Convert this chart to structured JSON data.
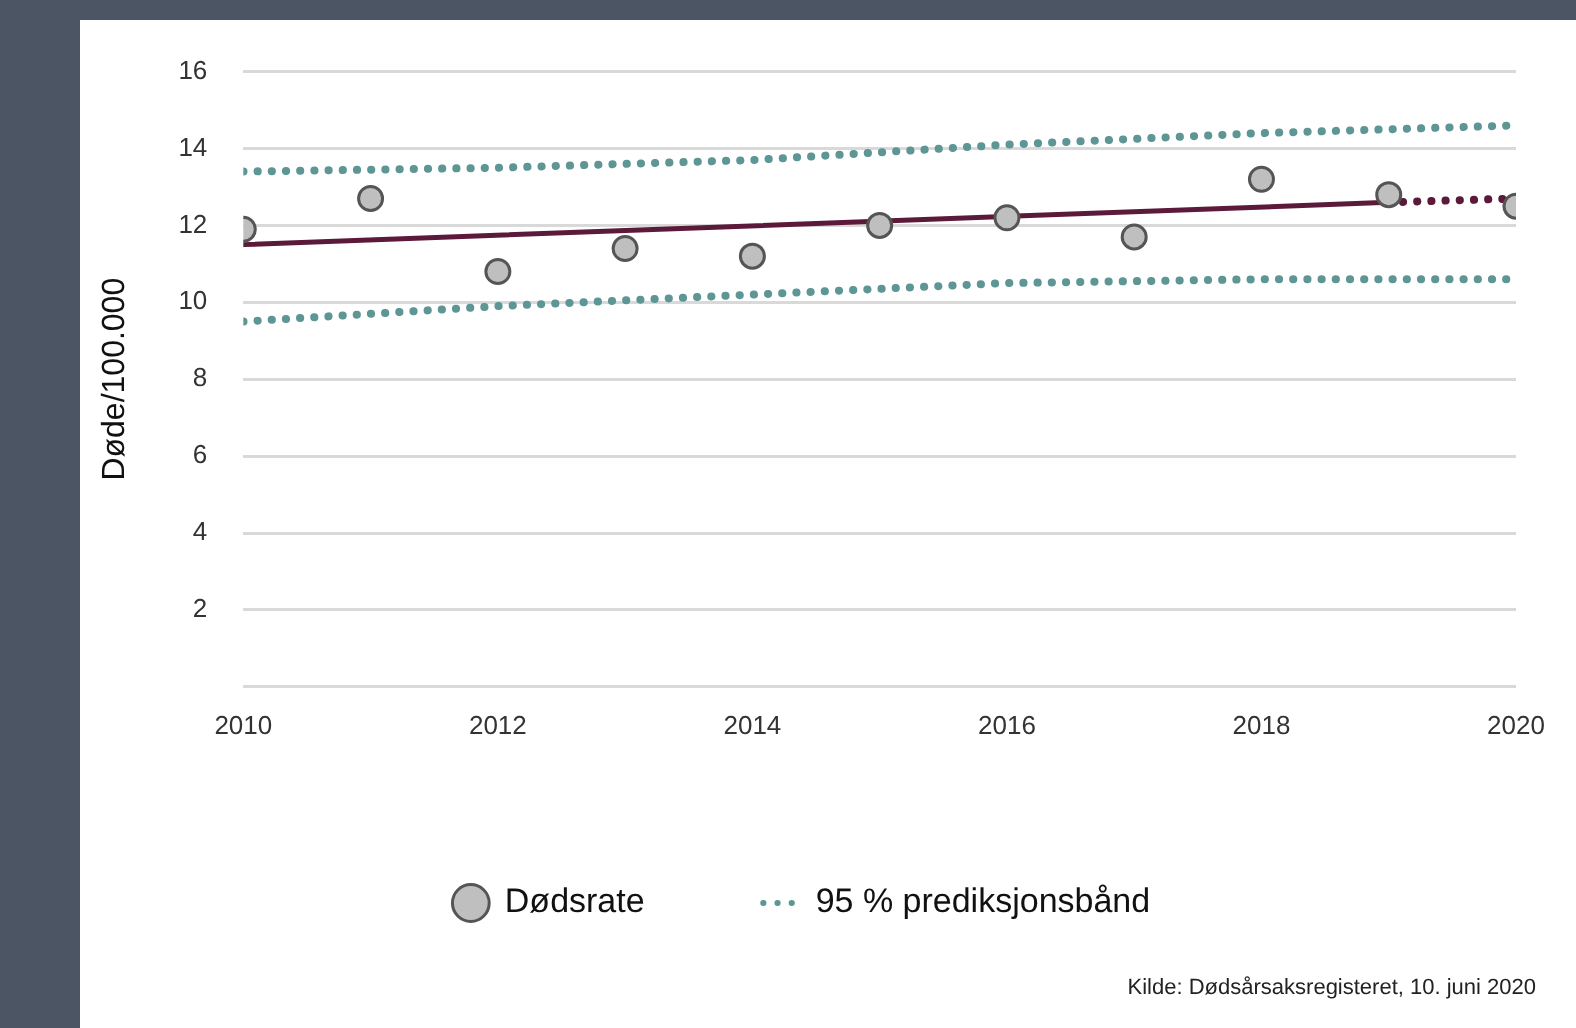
{
  "chart_data": {
    "type": "scatter",
    "ylabel": "Døde/100.000",
    "annotations": [
      "Kilde: Dødsårsaksregisteret, 10. juni 2020"
    ],
    "xlim": [
      2010,
      2020
    ],
    "xticks": [
      2010,
      2012,
      2014,
      2016,
      2018,
      2020
    ],
    "ylim": [
      0,
      16
    ],
    "yticks": [
      {
        "value": 0,
        "label": null
      },
      2,
      4,
      6,
      8,
      10,
      12,
      14,
      16
    ],
    "grid": "y",
    "legend": "bottom",
    "series": [
      {
        "name": "Dødsrate",
        "marker": "circle",
        "color": "#bfbfbf",
        "x": [
          2010,
          2011,
          2012,
          2013,
          2014,
          2015,
          2016,
          2017,
          2018,
          2019,
          2020
        ],
        "values": [
          11.9,
          12.7,
          10.8,
          11.4,
          11.2,
          12.0,
          12.2,
          11.7,
          13.2,
          12.8,
          12.5
        ]
      },
      {
        "type": "line",
        "marker": "none",
        "line_style": "solid",
        "color": "#5c1a3a",
        "x": [
          2010,
          2019
        ],
        "values": [
          11.5,
          12.6
        ]
      },
      {
        "type": "line",
        "marker": "none",
        "line_style": "dotted",
        "color": "#5c1a3a",
        "x": [
          2019,
          2020
        ],
        "values": [
          12.6,
          12.7
        ]
      },
      {
        "name": "95 % prediksjonsbånd",
        "type": "line",
        "marker": "none",
        "line_style": "dotted",
        "color": "#5e9595",
        "x": [
          2010,
          2012,
          2014,
          2016,
          2018,
          2020
        ],
        "values": [
          13.4,
          13.5,
          13.7,
          14.1,
          14.4,
          14.6
        ]
      },
      {
        "type": "line",
        "marker": "none",
        "line_style": "dotted",
        "color": "#5e9595",
        "x": [
          2010,
          2012,
          2014,
          2016,
          2018,
          2020
        ],
        "values": [
          9.5,
          9.9,
          10.2,
          10.5,
          10.6,
          10.6
        ]
      }
    ]
  }
}
